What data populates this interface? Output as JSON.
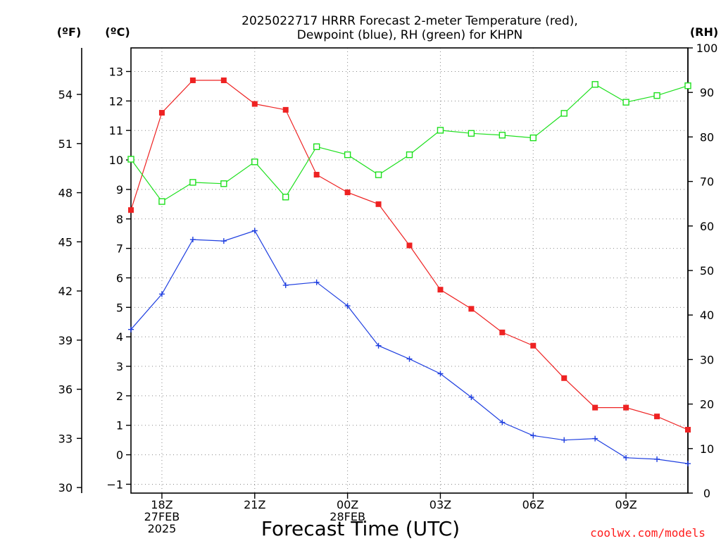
{
  "chart_data": {
    "type": "line",
    "title_lines": [
      "2025022717 HRRR Forecast 2-meter Temperature (red),",
      "Dewpoint (blue), RH (green) for KHPN"
    ],
    "xlabel": "Forecast Time (UTC)",
    "unit_labels": {
      "left_f": "(ºF)",
      "left_c": "(ºC)",
      "right_rh": "(RH)"
    },
    "credit": "coolwx.com/models",
    "x_hours": [
      17,
      18,
      19,
      20,
      21,
      22,
      23,
      24,
      25,
      26,
      27,
      28,
      29,
      30,
      31,
      32,
      33,
      34,
      35
    ],
    "xlim": [
      17,
      35
    ],
    "x_ticks": [
      {
        "hour": 18,
        "lines": [
          "18Z",
          "27FEB",
          "2025"
        ]
      },
      {
        "hour": 21,
        "lines": [
          "21Z"
        ]
      },
      {
        "hour": 24,
        "lines": [
          "00Z",
          "28FEB"
        ]
      },
      {
        "hour": 27,
        "lines": [
          "03Z"
        ]
      },
      {
        "hour": 30,
        "lines": [
          "06Z"
        ]
      },
      {
        "hour": 33,
        "lines": [
          "09Z"
        ]
      }
    ],
    "y_left_c": {
      "lim": [
        -1.3,
        13.8
      ],
      "ticks": [
        -1,
        0,
        1,
        2,
        3,
        4,
        5,
        6,
        7,
        8,
        9,
        10,
        11,
        12,
        13
      ]
    },
    "y_left_f": {
      "ticks": [
        30,
        33,
        36,
        39,
        42,
        45,
        48,
        51,
        54
      ]
    },
    "y_right_rh": {
      "lim": [
        0,
        100
      ],
      "ticks": [
        0,
        10,
        20,
        30,
        40,
        50,
        60,
        70,
        80,
        90,
        100
      ]
    },
    "grid": true,
    "series": [
      {
        "name": "Temperature",
        "axis": "c",
        "color": "#ee2222",
        "marker": "filled-square",
        "values": [
          8.3,
          11.6,
          12.7,
          12.7,
          11.9,
          11.7,
          9.5,
          8.9,
          8.5,
          7.1,
          5.6,
          4.95,
          4.15,
          3.7,
          2.6,
          1.6,
          1.6,
          1.3,
          0.85
        ]
      },
      {
        "name": "Dewpoint",
        "axis": "c",
        "color": "#1f3fe0",
        "marker": "plus",
        "values": [
          4.25,
          5.45,
          7.3,
          7.25,
          7.6,
          5.75,
          5.85,
          5.05,
          3.7,
          3.25,
          2.75,
          1.95,
          1.1,
          0.65,
          0.5,
          0.55,
          -0.1,
          -0.15,
          -0.3
        ]
      },
      {
        "name": "RH",
        "axis": "rh",
        "color": "#1ee01e",
        "marker": "open-square",
        "values": [
          75,
          65.5,
          69.8,
          69.5,
          74.4,
          66.5,
          77.8,
          76,
          71.5,
          76,
          81.5,
          80.8,
          80.4,
          79.8,
          85.3,
          91.8,
          87.8,
          89.3,
          91.5
        ]
      }
    ]
  }
}
